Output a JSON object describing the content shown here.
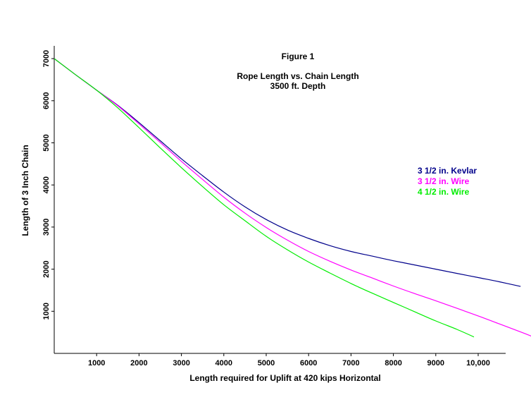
{
  "chart_data": {
    "type": "line",
    "figure_label": "Figure 1",
    "title": "Rope Length vs. Chain Length",
    "subtitle": "3500 ft. Depth",
    "xlabel": "Length required for Uplift at 420 kips Horizontal",
    "ylabel": "Length of 3 Inch Chain",
    "xlim": [
      0,
      11300
    ],
    "ylim": [
      0,
      7250
    ],
    "x_ticks": [
      1000,
      2000,
      3000,
      4000,
      5000,
      6000,
      7000,
      8000,
      9000,
      10000
    ],
    "x_tick_labels": [
      "1000",
      "2000",
      "3000",
      "4000",
      "5000",
      "6000",
      "7000",
      "8000",
      "9000",
      "10,000"
    ],
    "y_ticks": [
      1000,
      2000,
      3000,
      4000,
      5000,
      6000,
      7000
    ],
    "y_tick_labels": [
      "1000",
      "2000",
      "3000",
      "4000",
      "5000",
      "6000",
      "7000"
    ],
    "grid": false,
    "legend_position": "right",
    "series": [
      {
        "name": "3 1/2 in. Kevlar",
        "color": "#00008b",
        "points": [
          [
            0,
            7000
          ],
          [
            500,
            6620
          ],
          [
            1000,
            6250
          ],
          [
            1500,
            5890
          ],
          [
            2000,
            5480
          ],
          [
            2500,
            5050
          ],
          [
            3000,
            4620
          ],
          [
            3500,
            4220
          ],
          [
            4000,
            3830
          ],
          [
            4500,
            3480
          ],
          [
            5000,
            3180
          ],
          [
            5500,
            2930
          ],
          [
            6000,
            2730
          ],
          [
            6500,
            2560
          ],
          [
            7000,
            2420
          ],
          [
            7500,
            2310
          ],
          [
            8000,
            2200
          ],
          [
            8500,
            2100
          ],
          [
            9000,
            2000
          ],
          [
            9500,
            1900
          ],
          [
            10000,
            1800
          ],
          [
            10500,
            1700
          ],
          [
            11000,
            1590
          ]
        ]
      },
      {
        "name": "3 1/2 in. Wire",
        "color": "#ff00ff",
        "points": [
          [
            0,
            7000
          ],
          [
            500,
            6620
          ],
          [
            1000,
            6250
          ],
          [
            1500,
            5880
          ],
          [
            2000,
            5450
          ],
          [
            2500,
            5010
          ],
          [
            3000,
            4560
          ],
          [
            3500,
            4130
          ],
          [
            4000,
            3710
          ],
          [
            4500,
            3330
          ],
          [
            5000,
            2990
          ],
          [
            5500,
            2690
          ],
          [
            6000,
            2420
          ],
          [
            6500,
            2190
          ],
          [
            7000,
            1980
          ],
          [
            7500,
            1790
          ],
          [
            8000,
            1600
          ],
          [
            8500,
            1420
          ],
          [
            9000,
            1250
          ],
          [
            9500,
            1070
          ],
          [
            10000,
            890
          ],
          [
            10500,
            700
          ],
          [
            11000,
            510
          ],
          [
            11300,
            390
          ]
        ]
      },
      {
        "name": "4 1/2 in. Wire",
        "color": "#00ee00",
        "points": [
          [
            0,
            7000
          ],
          [
            500,
            6620
          ],
          [
            1000,
            6250
          ],
          [
            1500,
            5830
          ],
          [
            2000,
            5360
          ],
          [
            2500,
            4880
          ],
          [
            3000,
            4410
          ],
          [
            3500,
            3960
          ],
          [
            4000,
            3530
          ],
          [
            4500,
            3150
          ],
          [
            5000,
            2780
          ],
          [
            5500,
            2460
          ],
          [
            6000,
            2170
          ],
          [
            6500,
            1910
          ],
          [
            7000,
            1660
          ],
          [
            7500,
            1430
          ],
          [
            8000,
            1210
          ],
          [
            8500,
            990
          ],
          [
            9000,
            770
          ],
          [
            9500,
            570
          ],
          [
            9900,
            390
          ]
        ]
      }
    ]
  }
}
